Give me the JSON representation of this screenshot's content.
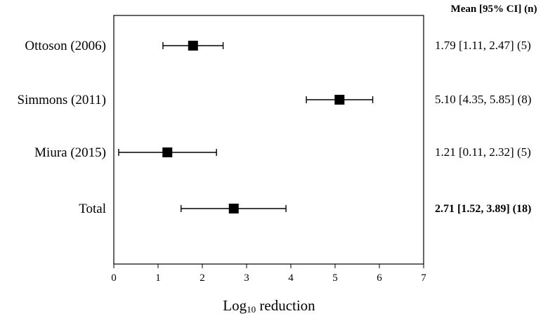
{
  "chart_data": {
    "type": "forest",
    "xlabel": "Log",
    "xlabel_subscript": "10",
    "xlabel_suffix": " reduction",
    "xlim": [
      0,
      7
    ],
    "xticks": [
      0,
      1,
      2,
      3,
      4,
      5,
      6,
      7
    ],
    "column_header": "Mean [95% CI] (n)",
    "rows": [
      {
        "label": "Ottoson (2006)",
        "mean": 1.79,
        "lower": 1.11,
        "upper": 2.47,
        "summary": "1.79 [1.11, 2.47] (5)",
        "bold": false
      },
      {
        "label": "Simmons (2011)",
        "mean": 5.1,
        "lower": 4.35,
        "upper": 5.85,
        "summary": "5.10 [4.35, 5.85] (8)",
        "bold": false
      },
      {
        "label": "Miura (2015)",
        "mean": 1.21,
        "lower": 0.11,
        "upper": 2.32,
        "summary": "1.21 [0.11, 2.32] (5)",
        "bold": false
      },
      {
        "label": "Total",
        "mean": 2.71,
        "lower": 1.52,
        "upper": 3.89,
        "summary": "2.71 [1.52, 3.89] (18)",
        "bold": true
      }
    ],
    "grid": false
  }
}
